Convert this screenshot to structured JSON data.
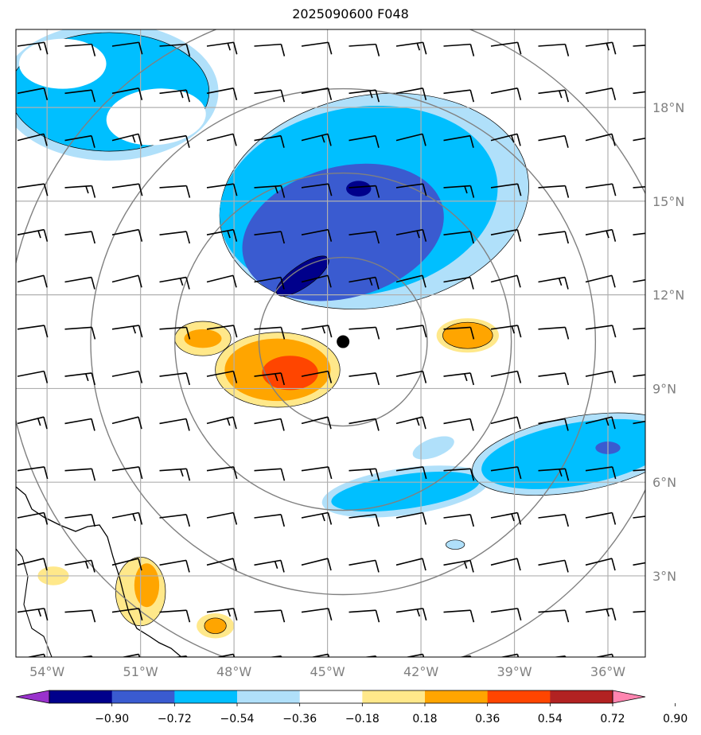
{
  "title": "2025090600 F048",
  "map": {
    "lon_range": [
      -55,
      -34.8
    ],
    "lat_range": [
      0.4,
      20.5
    ],
    "lon_ticks": [
      -54,
      -51,
      -48,
      -45,
      -42,
      -39,
      -36
    ],
    "lon_tick_labels": [
      "54°W",
      "51°W",
      "48°W",
      "45°W",
      "42°W",
      "39°W",
      "36°W"
    ],
    "lat_ticks": [
      3,
      6,
      9,
      12,
      15,
      18
    ],
    "lat_tick_labels": [
      "3°N",
      "6°N",
      "9°N",
      "12°N",
      "15°N",
      "18°N"
    ],
    "gridlines": true,
    "center": {
      "lon": -44.5,
      "lat": 10.5
    },
    "range_rings_deg": [
      2.7,
      5.4,
      8.1,
      10.8
    ]
  },
  "colorbar": {
    "levels": [
      -0.9,
      -0.72,
      -0.54,
      -0.36,
      -0.18,
      0.18,
      0.36,
      0.54,
      0.72,
      0.9
    ],
    "labels": [
      "−0.90",
      "−0.72",
      "−0.54",
      "−0.36",
      "−0.18",
      "0.18",
      "0.36",
      "0.54",
      "0.72",
      "0.90"
    ],
    "colors": [
      "#9932cc",
      "#00008b",
      "#3a5bd0",
      "#00bfff",
      "#b0e0fa",
      "#ffffff",
      "#ffe88a",
      "#ffa500",
      "#ff4500",
      "#b22222",
      "#ff85b0"
    ]
  },
  "colors": {
    "grid": "#b0b0b0",
    "ring": "#808080",
    "barb": "#000000",
    "center_marker": "#000000"
  },
  "fields": [
    {
      "level_color": "#b0e0fa",
      "lon": -43.5,
      "lat": 15.0,
      "rx": 5.0,
      "ry": 3.4,
      "rot": -10
    },
    {
      "level_color": "#00bfff",
      "lon": -44.0,
      "lat": 15.0,
      "rx": 4.5,
      "ry": 3.0,
      "rot": -10
    },
    {
      "level_color": "#3a5bd0",
      "lon": -44.5,
      "lat": 14.0,
      "rx": 3.3,
      "ry": 2.1,
      "rot": -15
    },
    {
      "level_color": "#00008b",
      "lon": -45.8,
      "lat": 12.6,
      "rx": 1.0,
      "ry": 0.35,
      "rot": -35
    },
    {
      "level_color": "#00008b",
      "lon": -44.0,
      "lat": 15.4,
      "rx": 0.4,
      "ry": 0.25,
      "rot": 0
    },
    {
      "level_color": "#b0e0fa",
      "lon": -52.0,
      "lat": 18.5,
      "rx": 3.5,
      "ry": 2.2,
      "rot": 0
    },
    {
      "level_color": "#00bfff",
      "lon": -52.0,
      "lat": 18.5,
      "rx": 3.2,
      "ry": 1.9,
      "rot": 0
    },
    {
      "level_color": "#ffffff",
      "lon": -50.5,
      "lat": 17.7,
      "rx": 1.6,
      "ry": 0.9,
      "rot": -5
    },
    {
      "level_color": "#ffffff",
      "lon": -53.5,
      "lat": 19.4,
      "rx": 1.4,
      "ry": 0.8,
      "rot": 0
    },
    {
      "level_color": "#ffe88a",
      "lon": -46.6,
      "lat": 9.6,
      "rx": 2.0,
      "ry": 1.2,
      "rot": 0
    },
    {
      "level_color": "#ffa500",
      "lon": -46.6,
      "lat": 9.6,
      "rx": 1.7,
      "ry": 1.0,
      "rot": 0
    },
    {
      "level_color": "#ff4500",
      "lon": -46.2,
      "lat": 9.5,
      "rx": 0.9,
      "ry": 0.55,
      "rot": 0
    },
    {
      "level_color": "#ffe88a",
      "lon": -49.0,
      "lat": 10.6,
      "rx": 0.9,
      "ry": 0.55,
      "rot": 0
    },
    {
      "level_color": "#ffa500",
      "lon": -49.0,
      "lat": 10.6,
      "rx": 0.6,
      "ry": 0.3,
      "rot": 0
    },
    {
      "level_color": "#ffe88a",
      "lon": -40.5,
      "lat": 10.7,
      "rx": 1.0,
      "ry": 0.55,
      "rot": 0
    },
    {
      "level_color": "#ffa500",
      "lon": -40.5,
      "lat": 10.7,
      "rx": 0.8,
      "ry": 0.42,
      "rot": 0
    },
    {
      "level_color": "#b0e0fa",
      "lon": -42.5,
      "lat": 5.7,
      "rx": 2.7,
      "ry": 0.75,
      "rot": -8
    },
    {
      "level_color": "#00bfff",
      "lon": -42.5,
      "lat": 5.7,
      "rx": 2.4,
      "ry": 0.55,
      "rot": -8
    },
    {
      "level_color": "#b0e0fa",
      "lon": -37.0,
      "lat": 6.9,
      "rx": 3.4,
      "ry": 1.2,
      "rot": -10
    },
    {
      "level_color": "#00bfff",
      "lon": -37.0,
      "lat": 6.9,
      "rx": 3.1,
      "ry": 1.0,
      "rot": -10
    },
    {
      "level_color": "#3a5bd0",
      "lon": -36.0,
      "lat": 7.1,
      "rx": 0.4,
      "ry": 0.2,
      "rot": 0
    },
    {
      "level_color": "#ffe88a",
      "lon": -51.0,
      "lat": 2.5,
      "rx": 0.8,
      "ry": 1.1,
      "rot": 0
    },
    {
      "level_color": "#ffa500",
      "lon": -50.8,
      "lat": 2.7,
      "rx": 0.4,
      "ry": 0.7,
      "rot": 0
    },
    {
      "level_color": "#ffe88a",
      "lon": -48.6,
      "lat": 1.4,
      "rx": 0.6,
      "ry": 0.4,
      "rot": 0
    },
    {
      "level_color": "#ffa500",
      "lon": -48.6,
      "lat": 1.4,
      "rx": 0.35,
      "ry": 0.25,
      "rot": 0
    },
    {
      "level_color": "#ffe88a",
      "lon": -53.8,
      "lat": 3.0,
      "rx": 0.5,
      "ry": 0.3,
      "rot": 0
    },
    {
      "level_color": "#b0e0fa",
      "lon": -41.6,
      "lat": 7.1,
      "rx": 0.7,
      "ry": 0.3,
      "rot": -20
    },
    {
      "level_color": "#b0e0fa",
      "lon": -40.9,
      "lat": 4.0,
      "rx": 0.3,
      "ry": 0.15,
      "rot": 0
    }
  ]
}
